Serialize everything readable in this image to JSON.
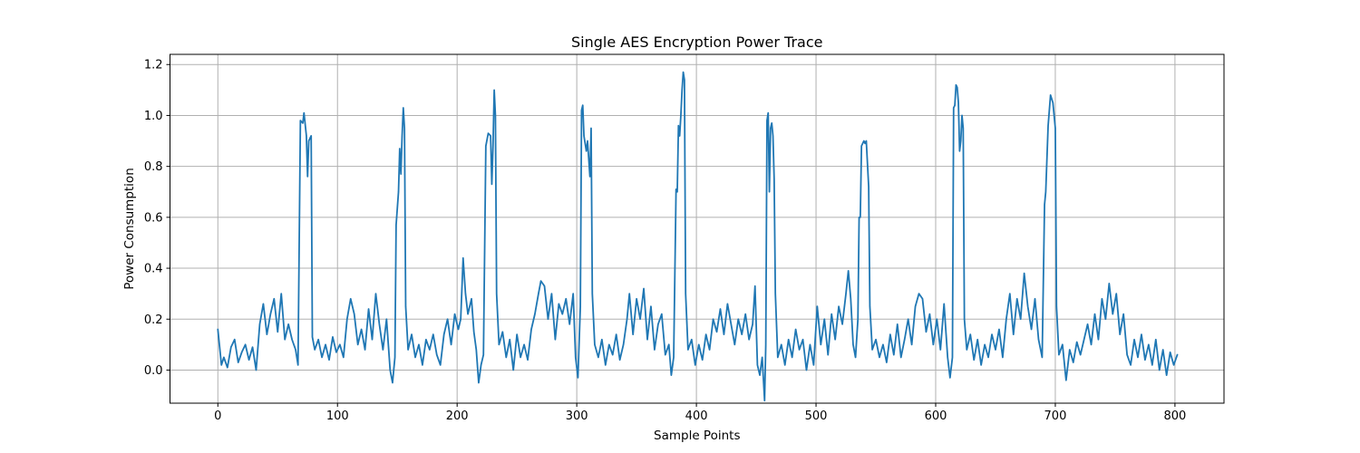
{
  "chart_data": {
    "type": "line",
    "title": "Single AES Encryption Power Trace",
    "xlabel": "Sample Points",
    "ylabel": "Power Consumption",
    "xlim": [
      -40,
      841
    ],
    "ylim": [
      -0.13,
      1.24
    ],
    "grid": true,
    "x_ticks": [
      0,
      100,
      200,
      300,
      400,
      500,
      600,
      700,
      800
    ],
    "y_ticks": [
      0.0,
      0.2,
      0.4,
      0.6,
      0.8,
      1.0,
      1.2
    ],
    "x_tick_labels": [
      "0",
      "100",
      "200",
      "300",
      "400",
      "500",
      "600",
      "700",
      "800"
    ],
    "y_tick_labels": [
      "0.0",
      "0.2",
      "0.4",
      "0.6",
      "0.8",
      "1.0",
      "1.2"
    ],
    "series": [
      {
        "color": "#1f77b4",
        "points": [
          [
            0,
            0.16
          ],
          [
            3,
            0.02
          ],
          [
            5,
            0.05
          ],
          [
            8,
            0.01
          ],
          [
            11,
            0.09
          ],
          [
            14,
            0.12
          ],
          [
            17,
            0.03
          ],
          [
            20,
            0.07
          ],
          [
            23,
            0.1
          ],
          [
            26,
            0.04
          ],
          [
            29,
            0.09
          ],
          [
            32,
            0.0
          ],
          [
            35,
            0.18
          ],
          [
            38,
            0.26
          ],
          [
            41,
            0.14
          ],
          [
            44,
            0.22
          ],
          [
            47,
            0.28
          ],
          [
            50,
            0.15
          ],
          [
            53,
            0.3
          ],
          [
            56,
            0.12
          ],
          [
            59,
            0.18
          ],
          [
            62,
            0.12
          ],
          [
            65,
            0.08
          ],
          [
            67,
            0.02
          ],
          [
            69,
            0.98
          ],
          [
            71,
            0.97
          ],
          [
            72,
            1.01
          ],
          [
            74,
            0.92
          ],
          [
            75,
            0.76
          ],
          [
            76,
            0.9
          ],
          [
            78,
            0.92
          ],
          [
            79,
            0.13
          ],
          [
            81,
            0.08
          ],
          [
            84,
            0.12
          ],
          [
            87,
            0.05
          ],
          [
            90,
            0.1
          ],
          [
            93,
            0.04
          ],
          [
            96,
            0.13
          ],
          [
            99,
            0.07
          ],
          [
            102,
            0.1
          ],
          [
            105,
            0.05
          ],
          [
            108,
            0.2
          ],
          [
            111,
            0.28
          ],
          [
            114,
            0.22
          ],
          [
            117,
            0.1
          ],
          [
            120,
            0.16
          ],
          [
            123,
            0.08
          ],
          [
            126,
            0.24
          ],
          [
            129,
            0.12
          ],
          [
            132,
            0.3
          ],
          [
            135,
            0.18
          ],
          [
            138,
            0.08
          ],
          [
            141,
            0.2
          ],
          [
            144,
            0.0
          ],
          [
            146,
            -0.05
          ],
          [
            148,
            0.05
          ],
          [
            149,
            0.57
          ],
          [
            151,
            0.7
          ],
          [
            152,
            0.87
          ],
          [
            153,
            0.77
          ],
          [
            154,
            0.92
          ],
          [
            155,
            1.03
          ],
          [
            156,
            0.95
          ],
          [
            157,
            0.25
          ],
          [
            159,
            0.08
          ],
          [
            162,
            0.14
          ],
          [
            165,
            0.05
          ],
          [
            168,
            0.1
          ],
          [
            171,
            0.02
          ],
          [
            174,
            0.12
          ],
          [
            177,
            0.08
          ],
          [
            180,
            0.14
          ],
          [
            183,
            0.06
          ],
          [
            186,
            0.02
          ],
          [
            189,
            0.14
          ],
          [
            192,
            0.2
          ],
          [
            195,
            0.1
          ],
          [
            198,
            0.22
          ],
          [
            201,
            0.16
          ],
          [
            203,
            0.2
          ],
          [
            205,
            0.44
          ],
          [
            207,
            0.3
          ],
          [
            209,
            0.22
          ],
          [
            212,
            0.28
          ],
          [
            214,
            0.15
          ],
          [
            216,
            0.08
          ],
          [
            218,
            -0.05
          ],
          [
            220,
            0.02
          ],
          [
            222,
            0.06
          ],
          [
            224,
            0.88
          ],
          [
            226,
            0.93
          ],
          [
            228,
            0.92
          ],
          [
            229,
            0.73
          ],
          [
            230,
            0.88
          ],
          [
            231,
            1.1
          ],
          [
            232,
            1.0
          ],
          [
            233,
            0.3
          ],
          [
            235,
            0.1
          ],
          [
            238,
            0.15
          ],
          [
            241,
            0.05
          ],
          [
            244,
            0.12
          ],
          [
            247,
            0.0
          ],
          [
            250,
            0.14
          ],
          [
            253,
            0.05
          ],
          [
            256,
            0.1
          ],
          [
            259,
            0.04
          ],
          [
            262,
            0.16
          ],
          [
            265,
            0.22
          ],
          [
            268,
            0.3
          ],
          [
            270,
            0.35
          ],
          [
            273,
            0.33
          ],
          [
            276,
            0.2
          ],
          [
            279,
            0.3
          ],
          [
            282,
            0.12
          ],
          [
            285,
            0.26
          ],
          [
            288,
            0.22
          ],
          [
            291,
            0.28
          ],
          [
            294,
            0.18
          ],
          [
            297,
            0.3
          ],
          [
            299,
            0.05
          ],
          [
            301,
            -0.03
          ],
          [
            303,
            0.25
          ],
          [
            304,
            1.02
          ],
          [
            305,
            1.04
          ],
          [
            306,
            0.92
          ],
          [
            308,
            0.86
          ],
          [
            309,
            0.9
          ],
          [
            311,
            0.76
          ],
          [
            312,
            0.95
          ],
          [
            313,
            0.3
          ],
          [
            315,
            0.1
          ],
          [
            318,
            0.05
          ],
          [
            321,
            0.12
          ],
          [
            324,
            0.02
          ],
          [
            327,
            0.1
          ],
          [
            330,
            0.06
          ],
          [
            333,
            0.14
          ],
          [
            336,
            0.04
          ],
          [
            339,
            0.1
          ],
          [
            342,
            0.2
          ],
          [
            344,
            0.3
          ],
          [
            347,
            0.14
          ],
          [
            350,
            0.28
          ],
          [
            353,
            0.2
          ],
          [
            356,
            0.32
          ],
          [
            359,
            0.12
          ],
          [
            362,
            0.25
          ],
          [
            365,
            0.08
          ],
          [
            368,
            0.18
          ],
          [
            371,
            0.22
          ],
          [
            374,
            0.06
          ],
          [
            377,
            0.1
          ],
          [
            379,
            -0.02
          ],
          [
            381,
            0.05
          ],
          [
            383,
            0.71
          ],
          [
            384,
            0.7
          ],
          [
            385,
            0.96
          ],
          [
            386,
            0.92
          ],
          [
            387,
            1.0
          ],
          [
            388,
            1.1
          ],
          [
            389,
            1.17
          ],
          [
            390,
            1.14
          ],
          [
            391,
            0.3
          ],
          [
            393,
            0.08
          ],
          [
            396,
            0.12
          ],
          [
            399,
            0.02
          ],
          [
            402,
            0.1
          ],
          [
            405,
            0.04
          ],
          [
            408,
            0.14
          ],
          [
            411,
            0.08
          ],
          [
            414,
            0.2
          ],
          [
            417,
            0.15
          ],
          [
            420,
            0.24
          ],
          [
            423,
            0.14
          ],
          [
            426,
            0.26
          ],
          [
            429,
            0.18
          ],
          [
            432,
            0.1
          ],
          [
            435,
            0.2
          ],
          [
            438,
            0.14
          ],
          [
            441,
            0.22
          ],
          [
            444,
            0.12
          ],
          [
            447,
            0.18
          ],
          [
            449,
            0.33
          ],
          [
            451,
            0.02
          ],
          [
            453,
            -0.02
          ],
          [
            455,
            0.05
          ],
          [
            457,
            -0.12
          ],
          [
            458,
            0.1
          ],
          [
            459,
            0.98
          ],
          [
            460,
            1.01
          ],
          [
            461,
            0.7
          ],
          [
            462,
            0.95
          ],
          [
            463,
            0.97
          ],
          [
            464,
            0.92
          ],
          [
            465,
            0.75
          ],
          [
            466,
            0.3
          ],
          [
            468,
            0.05
          ],
          [
            471,
            0.1
          ],
          [
            474,
            0.02
          ],
          [
            477,
            0.12
          ],
          [
            480,
            0.05
          ],
          [
            483,
            0.16
          ],
          [
            486,
            0.08
          ],
          [
            489,
            0.12
          ],
          [
            492,
            0.0
          ],
          [
            495,
            0.1
          ],
          [
            498,
            0.02
          ],
          [
            501,
            0.25
          ],
          [
            504,
            0.1
          ],
          [
            507,
            0.2
          ],
          [
            510,
            0.06
          ],
          [
            513,
            0.22
          ],
          [
            516,
            0.12
          ],
          [
            519,
            0.25
          ],
          [
            522,
            0.18
          ],
          [
            525,
            0.3
          ],
          [
            527,
            0.39
          ],
          [
            529,
            0.28
          ],
          [
            531,
            0.1
          ],
          [
            533,
            0.05
          ],
          [
            535,
            0.2
          ],
          [
            536,
            0.6
          ],
          [
            537,
            0.6
          ],
          [
            538,
            0.88
          ],
          [
            540,
            0.9
          ],
          [
            541,
            0.89
          ],
          [
            542,
            0.9
          ],
          [
            544,
            0.72
          ],
          [
            545,
            0.25
          ],
          [
            547,
            0.08
          ],
          [
            550,
            0.12
          ],
          [
            553,
            0.05
          ],
          [
            556,
            0.1
          ],
          [
            559,
            0.03
          ],
          [
            562,
            0.14
          ],
          [
            565,
            0.06
          ],
          [
            568,
            0.18
          ],
          [
            571,
            0.05
          ],
          [
            574,
            0.12
          ],
          [
            577,
            0.2
          ],
          [
            580,
            0.1
          ],
          [
            583,
            0.25
          ],
          [
            586,
            0.3
          ],
          [
            589,
            0.28
          ],
          [
            592,
            0.15
          ],
          [
            595,
            0.22
          ],
          [
            598,
            0.1
          ],
          [
            601,
            0.2
          ],
          [
            604,
            0.08
          ],
          [
            607,
            0.26
          ],
          [
            610,
            0.05
          ],
          [
            612,
            -0.03
          ],
          [
            614,
            0.05
          ],
          [
            615,
            1.03
          ],
          [
            616,
            1.04
          ],
          [
            617,
            1.12
          ],
          [
            618,
            1.11
          ],
          [
            619,
            1.05
          ],
          [
            620,
            0.86
          ],
          [
            621,
            0.9
          ],
          [
            622,
            1.0
          ],
          [
            623,
            0.95
          ],
          [
            624,
            0.2
          ],
          [
            626,
            0.08
          ],
          [
            629,
            0.14
          ],
          [
            632,
            0.04
          ],
          [
            635,
            0.12
          ],
          [
            638,
            0.02
          ],
          [
            641,
            0.1
          ],
          [
            644,
            0.05
          ],
          [
            647,
            0.14
          ],
          [
            650,
            0.08
          ],
          [
            653,
            0.16
          ],
          [
            656,
            0.05
          ],
          [
            659,
            0.2
          ],
          [
            662,
            0.3
          ],
          [
            665,
            0.14
          ],
          [
            668,
            0.28
          ],
          [
            671,
            0.2
          ],
          [
            674,
            0.38
          ],
          [
            677,
            0.25
          ],
          [
            680,
            0.16
          ],
          [
            683,
            0.28
          ],
          [
            686,
            0.12
          ],
          [
            689,
            0.05
          ],
          [
            691,
            0.65
          ],
          [
            692,
            0.7
          ],
          [
            694,
            0.96
          ],
          [
            696,
            1.08
          ],
          [
            698,
            1.05
          ],
          [
            700,
            0.95
          ],
          [
            701,
            0.25
          ],
          [
            703,
            0.06
          ],
          [
            706,
            0.1
          ],
          [
            709,
            -0.04
          ],
          [
            712,
            0.08
          ],
          [
            715,
            0.03
          ],
          [
            718,
            0.11
          ],
          [
            721,
            0.06
          ],
          [
            724,
            0.12
          ],
          [
            727,
            0.18
          ],
          [
            730,
            0.1
          ],
          [
            733,
            0.22
          ],
          [
            736,
            0.12
          ],
          [
            739,
            0.28
          ],
          [
            742,
            0.2
          ],
          [
            745,
            0.34
          ],
          [
            748,
            0.22
          ],
          [
            751,
            0.3
          ],
          [
            754,
            0.14
          ],
          [
            757,
            0.22
          ],
          [
            760,
            0.06
          ],
          [
            763,
            0.02
          ],
          [
            766,
            0.12
          ],
          [
            769,
            0.05
          ],
          [
            772,
            0.14
          ],
          [
            775,
            0.04
          ],
          [
            778,
            0.1
          ],
          [
            781,
            0.02
          ],
          [
            784,
            0.12
          ],
          [
            787,
            0.0
          ],
          [
            790,
            0.08
          ],
          [
            793,
            -0.02
          ],
          [
            796,
            0.07
          ],
          [
            799,
            0.02
          ],
          [
            802,
            0.06
          ]
        ]
      }
    ]
  }
}
